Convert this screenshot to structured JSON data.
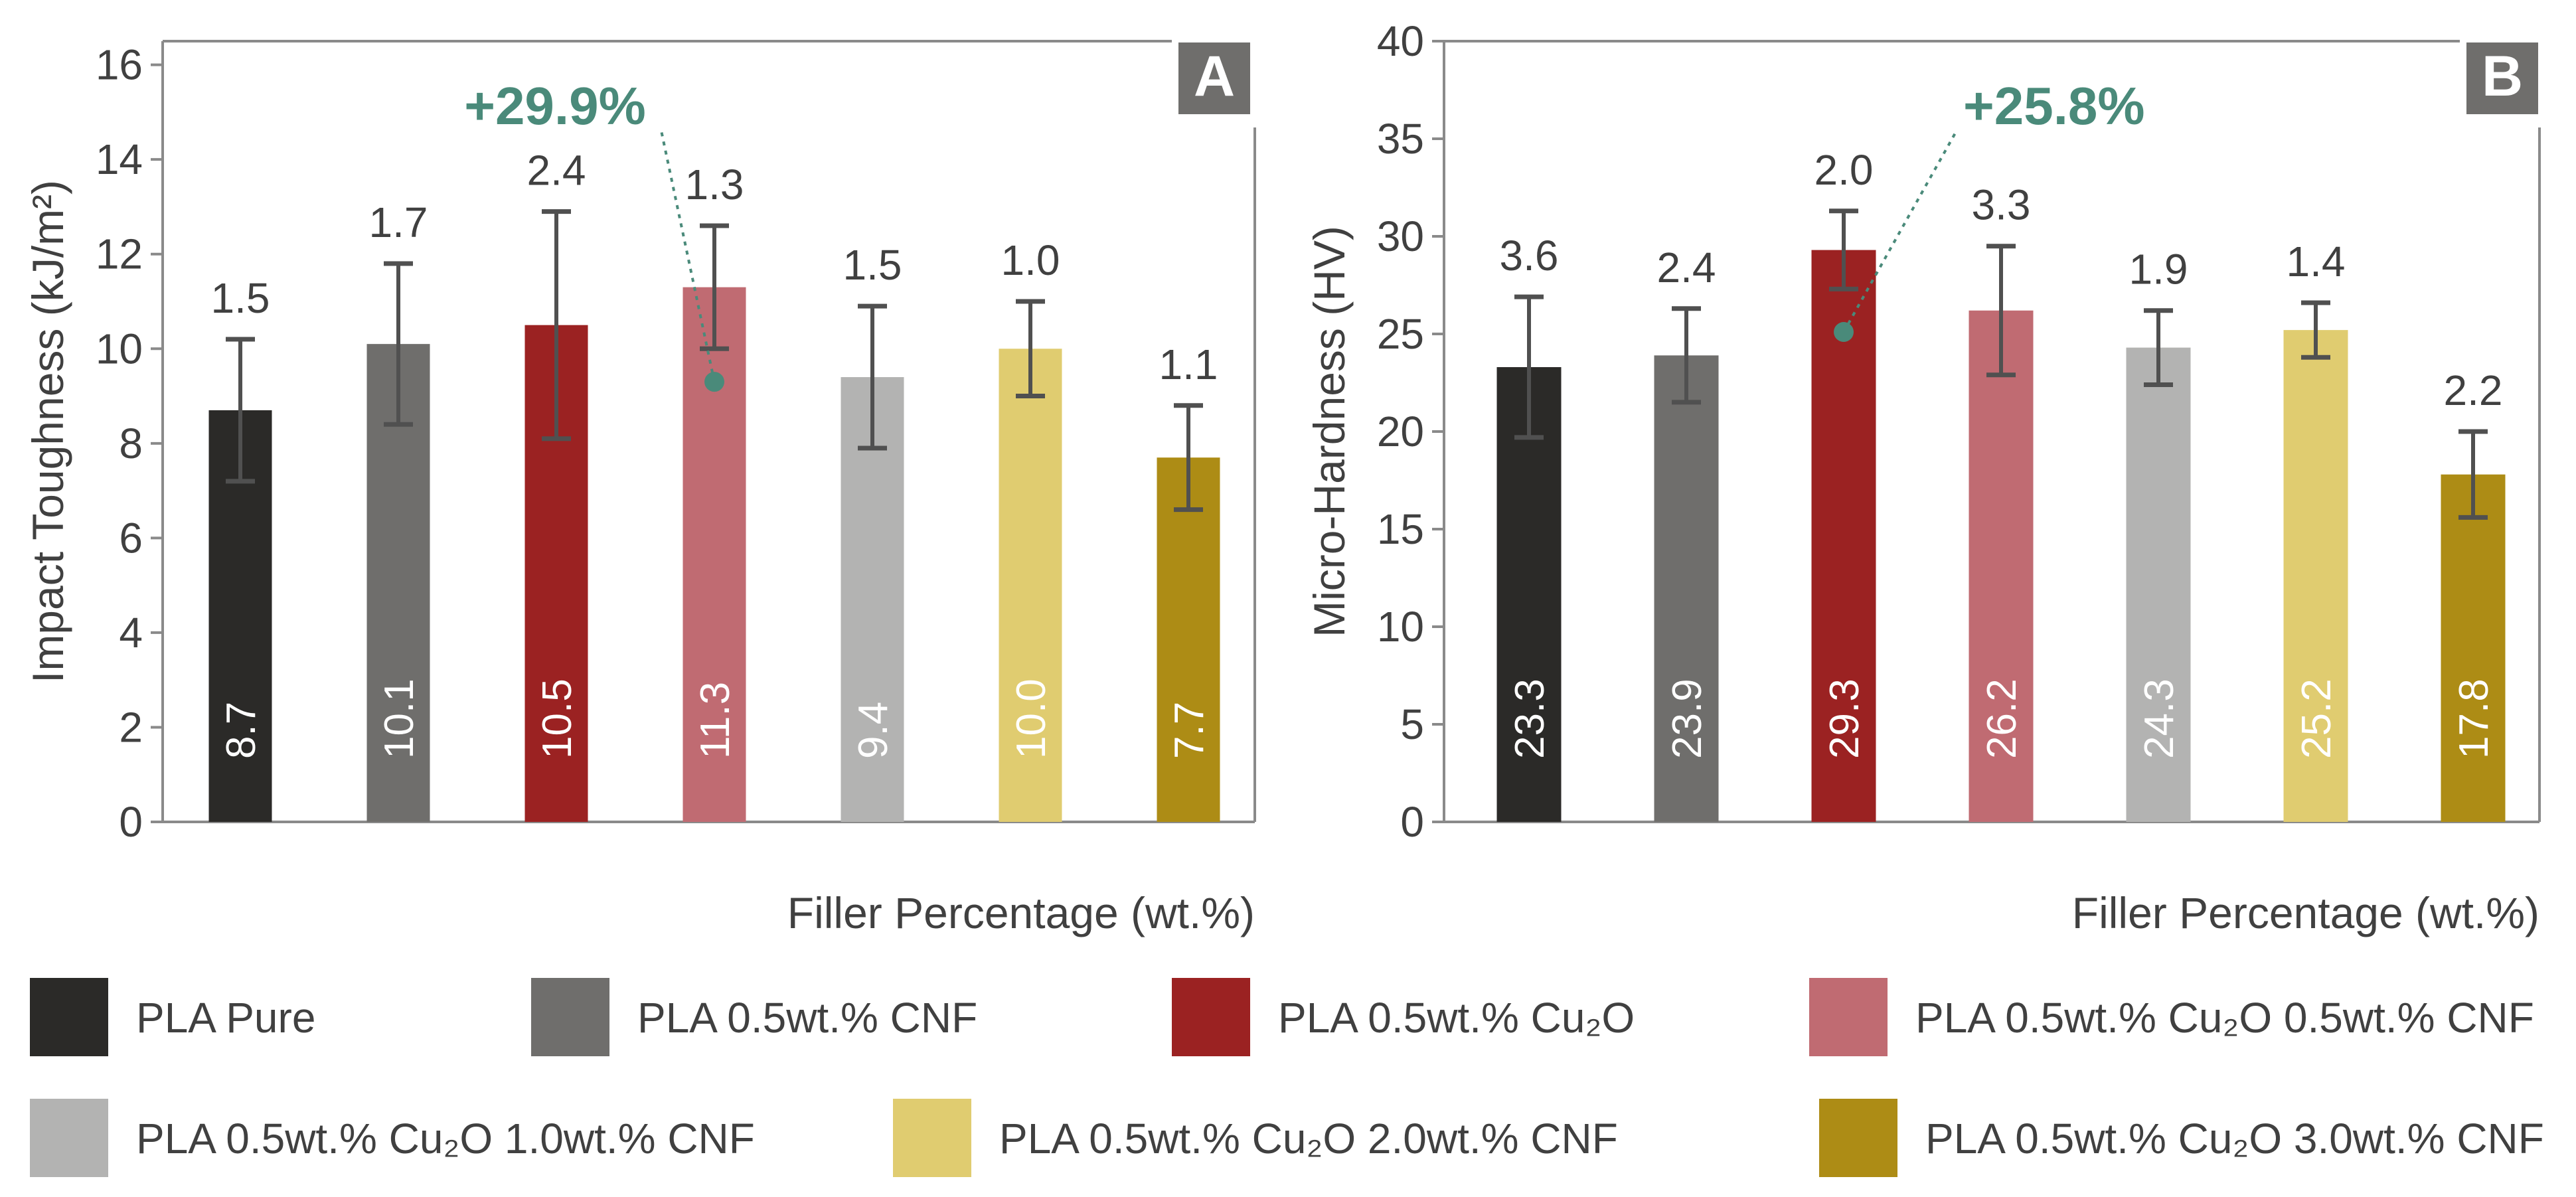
{
  "legend": [
    {
      "label": "PLA Pure",
      "color": "#2b2a28"
    },
    {
      "label": "PLA 0.5wt.% CNF",
      "color": "#6f6e6c"
    },
    {
      "label": "PLA 0.5wt.% Cu₂O",
      "color": "#9b2222"
    },
    {
      "label": "PLA 0.5wt.% Cu₂O 0.5wt.% CNF",
      "color": "#c06b72"
    },
    {
      "label": "PLA 0.5wt.% Cu₂O 1.0wt.% CNF",
      "color": "#b3b3b2"
    },
    {
      "label": "PLA 0.5wt.% Cu₂O 2.0wt.% CNF",
      "color": "#e0cc70"
    },
    {
      "label": "PLA 0.5wt.% Cu₂O 3.0wt.% CNF",
      "color": "#ad8c15"
    }
  ],
  "chart_data": [
    {
      "type": "bar",
      "panel": "A",
      "title": "",
      "xlabel": "Filler Percentage (wt.%)",
      "ylabel": "Impact Toughness (kJ/m²)",
      "ylim": [
        0,
        16.5
      ],
      "yticks": [
        0,
        2,
        4,
        6,
        8,
        10,
        12,
        14,
        16
      ],
      "categories": [
        "PLA Pure",
        "PLA 0.5wt.% CNF",
        "PLA 0.5wt.% Cu₂O",
        "PLA 0.5wt.% Cu₂O 0.5wt.% CNF",
        "PLA 0.5wt.% Cu₂O 1.0wt.% CNF",
        "PLA 0.5wt.% Cu₂O 2.0wt.% CNF",
        "PLA 0.5wt.% Cu₂O 3.0wt.% CNF"
      ],
      "values": [
        8.7,
        10.1,
        10.5,
        11.3,
        9.4,
        10.0,
        7.7
      ],
      "value_labels": [
        "8.7",
        "10.1",
        "10.5",
        "11.3",
        "9.4",
        "10.0",
        "7.7"
      ],
      "errors": [
        1.5,
        1.7,
        2.4,
        1.3,
        1.5,
        1.0,
        1.1
      ],
      "error_labels": [
        "1.5",
        "1.7",
        "2.4",
        "1.3",
        "1.5",
        "1.0",
        "1.1"
      ],
      "annotation": {
        "text": "+29.9%",
        "bar_index": 3,
        "marker_value": 9.3
      }
    },
    {
      "type": "bar",
      "panel": "B",
      "title": "",
      "xlabel": "Filler Percentage (wt.%)",
      "ylabel": "Micro-Hardness (HV)",
      "ylim": [
        0,
        40
      ],
      "yticks": [
        0,
        5,
        10,
        15,
        20,
        25,
        30,
        35,
        40
      ],
      "categories": [
        "PLA Pure",
        "PLA 0.5wt.% CNF",
        "PLA 0.5wt.% Cu₂O",
        "PLA 0.5wt.% Cu₂O 0.5wt.% CNF",
        "PLA 0.5wt.% Cu₂O 1.0wt.% CNF",
        "PLA 0.5wt.% Cu₂O 2.0wt.% CNF",
        "PLA 0.5wt.% Cu₂O 3.0wt.% CNF"
      ],
      "values": [
        23.3,
        23.9,
        29.3,
        26.2,
        24.3,
        25.2,
        17.8
      ],
      "value_labels": [
        "23.3",
        "23.9",
        "29.3",
        "26.2",
        "24.3",
        "25.2",
        "17.8"
      ],
      "errors": [
        3.6,
        2.4,
        2.0,
        3.3,
        1.9,
        1.4,
        2.2
      ],
      "error_labels": [
        "3.6",
        "2.4",
        "2.0",
        "3.3",
        "1.9",
        "1.4",
        "2.2"
      ],
      "annotation": {
        "text": "+25.8%",
        "bar_index": 2,
        "marker_value": 25.1
      }
    }
  ],
  "style": {
    "axis_color": "#8a8a8a",
    "text_color": "#404040",
    "error_color": "#505050",
    "accent_color": "#4a8a7a",
    "badge_bg": "#6f6e6c",
    "badge_fg": "#ffffff"
  }
}
